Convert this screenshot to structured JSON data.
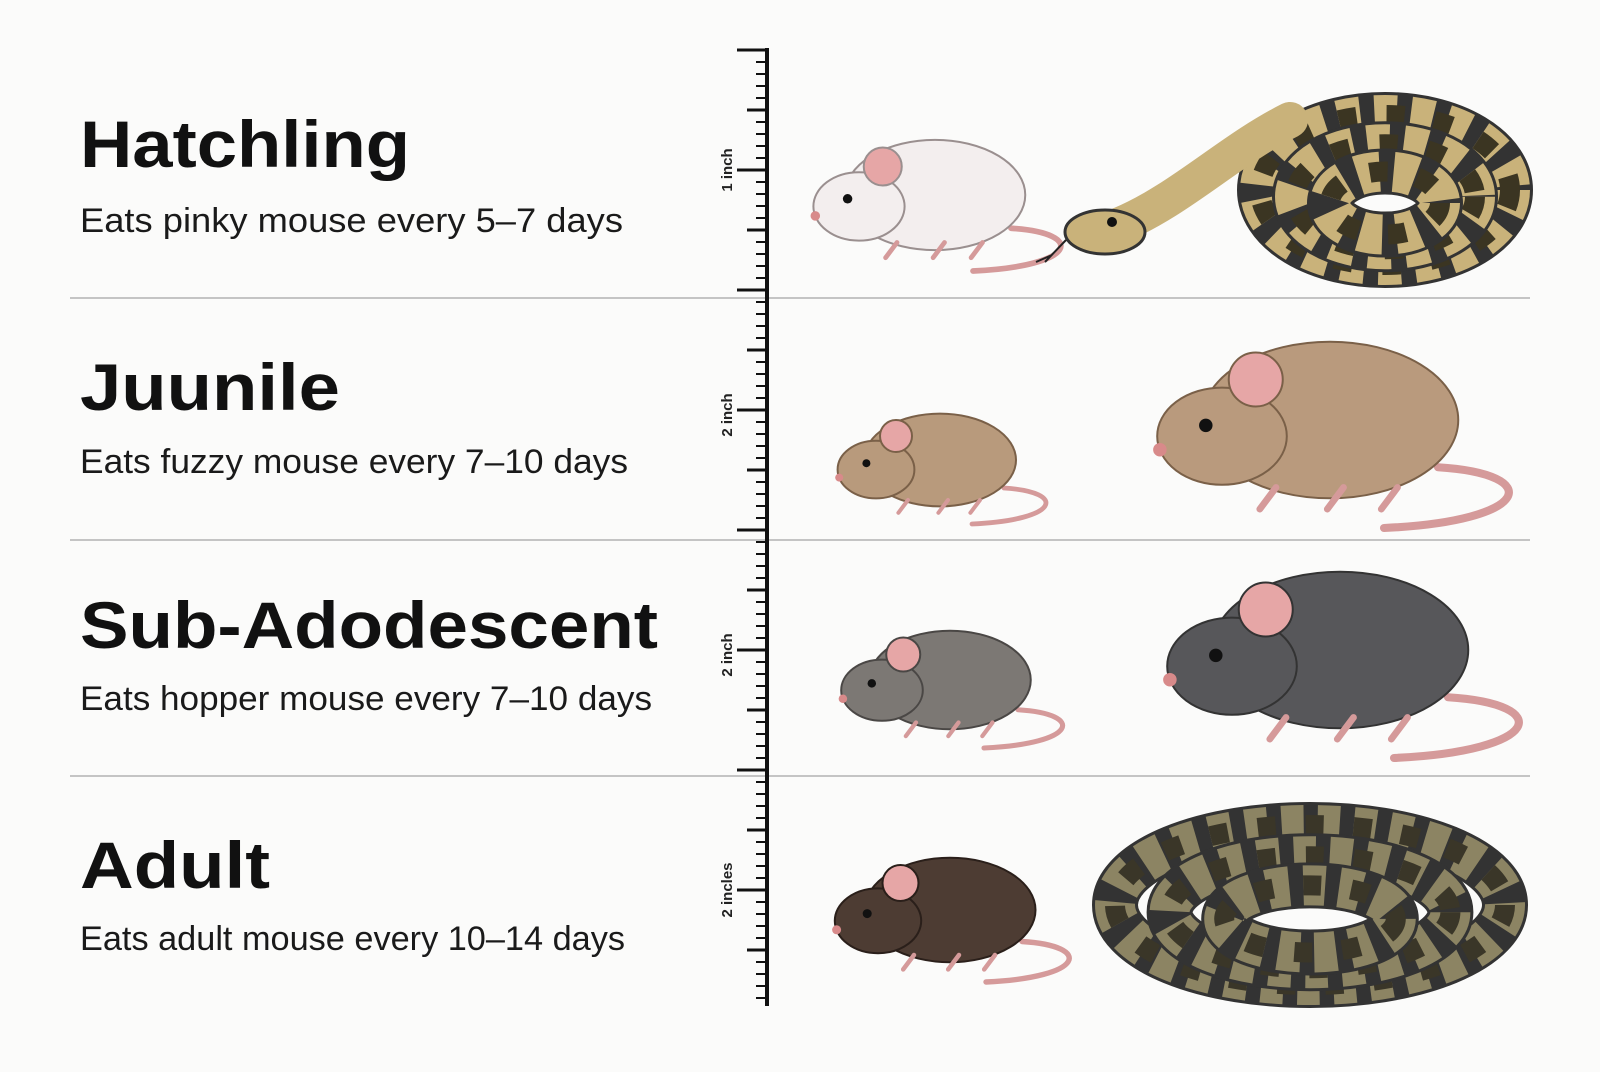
{
  "rows": [
    {
      "title": "Hatchling",
      "description": "Eats pinky mouse every 5–7 days",
      "ruler_label": "1 inch"
    },
    {
      "title": "Juunile",
      "description": "Eats fuzzy mouse every 7–10 days",
      "ruler_label": "2 inch"
    },
    {
      "title": "Sub-Adodescent",
      "description": "Eats hopper mouse every 7–10 days",
      "ruler_label": "2 inch"
    },
    {
      "title": "Adult",
      "description": "Eats adult mouse every 10–14 days",
      "ruler_label": "2 incles"
    }
  ]
}
